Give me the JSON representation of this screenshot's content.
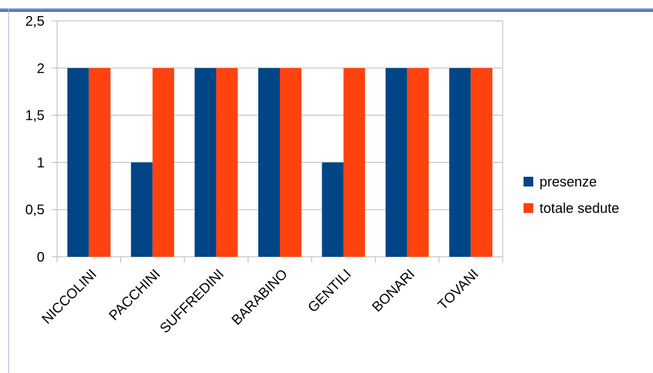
{
  "chart_data": {
    "type": "bar",
    "categories": [
      "NICCOLINI",
      "PACCHINI",
      "SUFFREDINI",
      "BARABINO",
      "GENTILI",
      "BONARI",
      "TOVANI"
    ],
    "series": [
      {
        "name": "presenze",
        "color": "#004586",
        "values": [
          2,
          1,
          2,
          2,
          1,
          2,
          2
        ]
      },
      {
        "name": "totale sedute",
        "color": "#ff420e",
        "values": [
          2,
          2,
          2,
          2,
          2,
          2,
          2
        ]
      }
    ],
    "ylim": [
      0,
      2.5
    ],
    "yticks": [
      "0",
      "0,5",
      "1",
      "1,5",
      "2",
      "2,5"
    ],
    "grid": true,
    "legend": "right"
  }
}
